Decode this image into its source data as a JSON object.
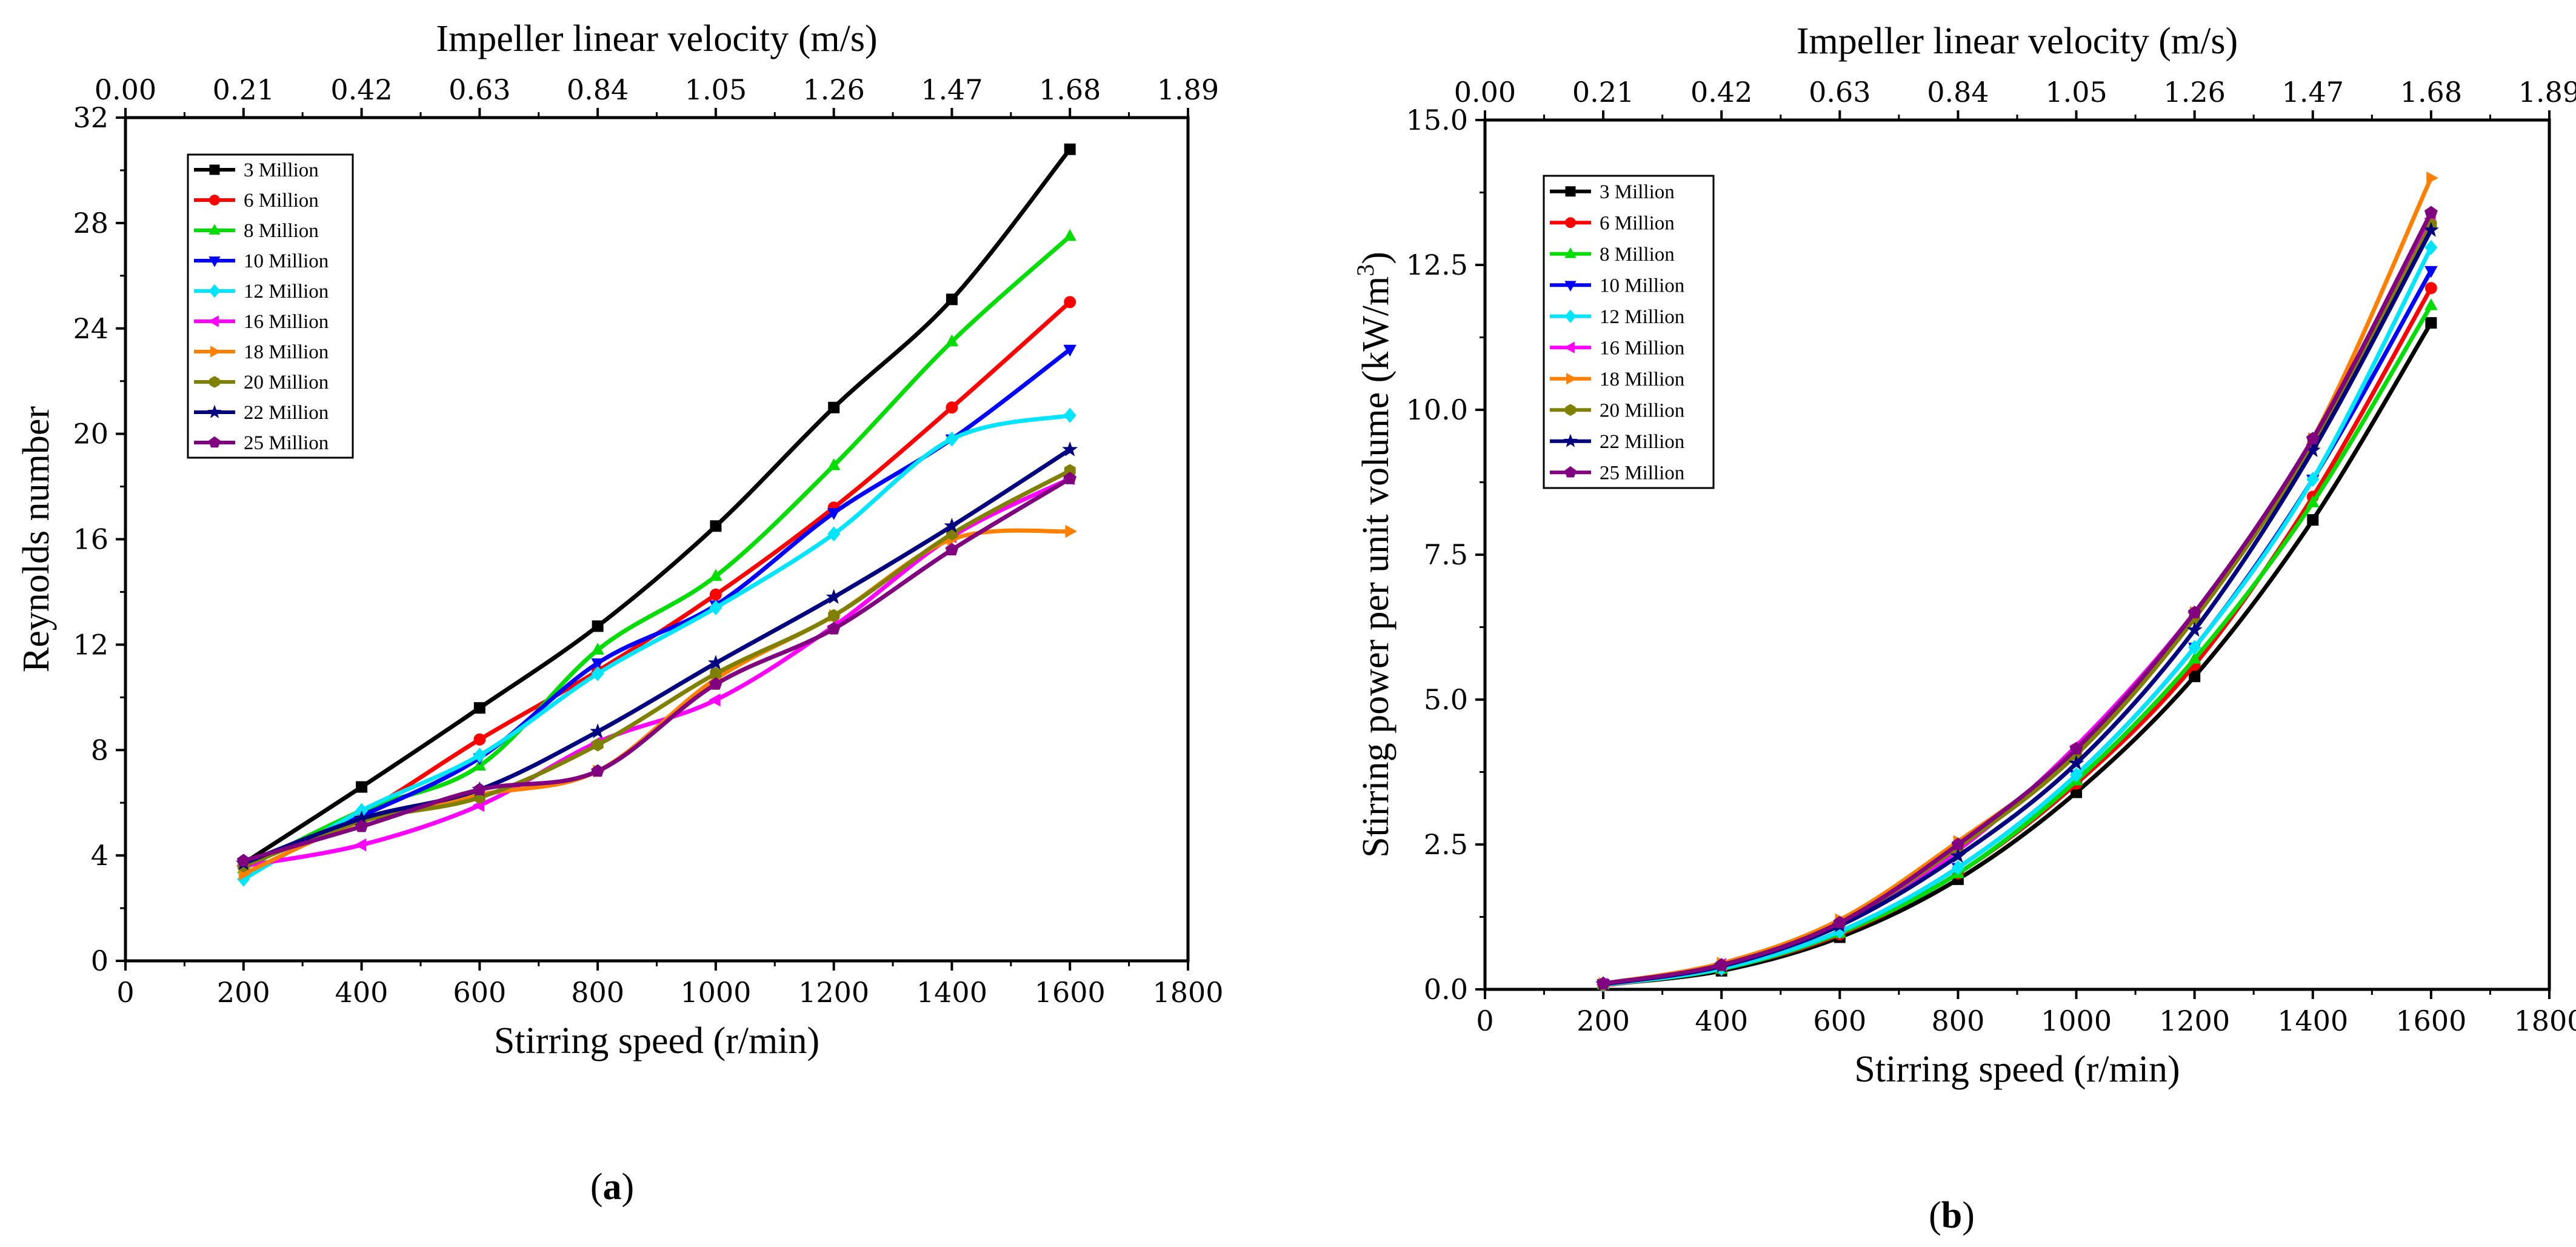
{
  "chart_data": [
    {
      "type": "line",
      "panel_label": "a",
      "title": "",
      "xlabel": "Stirring speed (r/min)",
      "ylabel": "Reynolds number",
      "x2label": "Impeller linear velocity  (m/s)",
      "xlim": [
        0,
        1800
      ],
      "ylim": [
        0,
        32
      ],
      "x2lim": [
        0,
        1.89
      ],
      "xticks": [
        "0",
        "200",
        "400",
        "600",
        "800",
        "1000",
        "1200",
        "1400",
        "1600",
        "1800"
      ],
      "yticks": [
        "0",
        "4",
        "8",
        "12",
        "16",
        "20",
        "24",
        "28",
        "32"
      ],
      "x2ticks": [
        "0.00",
        "0.21",
        "0.42",
        "0.63",
        "0.84",
        "1.05",
        "1.26",
        "1.47",
        "1.68",
        "1.89"
      ],
      "x": [
        200,
        400,
        600,
        800,
        1000,
        1200,
        1400,
        1600
      ],
      "legend_position": "top-left",
      "series": [
        {
          "name": "3 Million",
          "color": "#000000",
          "marker": "square",
          "values": [
            3.7,
            6.6,
            9.6,
            12.7,
            16.5,
            21.0,
            25.1,
            30.8
          ]
        },
        {
          "name": "6 Million",
          "color": "#ff0000",
          "marker": "circle",
          "values": [
            3.6,
            5.6,
            8.4,
            11.0,
            13.9,
            17.2,
            21.0,
            25.0
          ]
        },
        {
          "name": "8 Million",
          "color": "#00dd00",
          "marker": "triangle-up",
          "values": [
            3.5,
            5.7,
            7.4,
            11.8,
            14.6,
            18.8,
            23.5,
            27.5
          ]
        },
        {
          "name": "10 Million",
          "color": "#0000ff",
          "marker": "triangle-down",
          "values": [
            3.6,
            5.5,
            7.7,
            11.3,
            13.5,
            17.0,
            19.8,
            23.2
          ]
        },
        {
          "name": "12 Million",
          "color": "#00e5ff",
          "marker": "diamond",
          "values": [
            3.1,
            5.7,
            7.8,
            10.9,
            13.4,
            16.2,
            19.8,
            20.7
          ]
        },
        {
          "name": "16 Million",
          "color": "#ff00ff",
          "marker": "triangle-left",
          "values": [
            3.6,
            4.4,
            5.9,
            8.3,
            9.9,
            12.7,
            16.1,
            18.3
          ]
        },
        {
          "name": "18 Million",
          "color": "#ff8000",
          "marker": "triangle-right",
          "values": [
            3.3,
            5.3,
            6.3,
            7.2,
            10.7,
            13.1,
            16.0,
            16.3
          ]
        },
        {
          "name": "20 Million",
          "color": "#808000",
          "marker": "hexagon",
          "values": [
            3.6,
            5.3,
            6.2,
            8.2,
            10.9,
            13.1,
            16.2,
            18.6
          ]
        },
        {
          "name": "22 Million",
          "color": "#000080",
          "marker": "star",
          "values": [
            3.7,
            5.4,
            6.5,
            8.7,
            11.3,
            13.8,
            16.5,
            19.4
          ]
        },
        {
          "name": "25 Million",
          "color": "#800080",
          "marker": "pentagon",
          "values": [
            3.8,
            5.1,
            6.5,
            7.2,
            10.5,
            12.6,
            15.6,
            18.3
          ]
        }
      ]
    },
    {
      "type": "line",
      "panel_label": "b",
      "title": "",
      "xlabel": "Stirring speed (r/min)",
      "ylabel": "Stirring power per unit volume (kW/m³)",
      "ylabel_main": "Stirring power per unit volume (kW/m",
      "ylabel_sup": "3",
      "ylabel_tail": ")",
      "x2label": "Impeller linear velocity (m/s)",
      "xlim": [
        0,
        1800
      ],
      "ylim": [
        0,
        15
      ],
      "x2lim": [
        0,
        1.89
      ],
      "xticks": [
        "0",
        "200",
        "400",
        "600",
        "800",
        "1000",
        "1200",
        "1400",
        "1600",
        "1800"
      ],
      "yticks": [
        "0.0",
        "2.5",
        "5.0",
        "7.5",
        "10.0",
        "12.5",
        "15.0"
      ],
      "x2ticks": [
        "0.00",
        "0.21",
        "0.42",
        "0.63",
        "0.84",
        "1.05",
        "1.26",
        "1.47",
        "1.68",
        "1.89"
      ],
      "x": [
        200,
        400,
        600,
        800,
        1000,
        1200,
        1400,
        1600
      ],
      "legend_position": "top-left",
      "series": [
        {
          "name": "3 Million",
          "color": "#000000",
          "marker": "square",
          "values": [
            0.08,
            0.32,
            0.9,
            1.9,
            3.4,
            5.4,
            8.1,
            11.5
          ]
        },
        {
          "name": "6 Million",
          "color": "#ff0000",
          "marker": "circle",
          "values": [
            0.07,
            0.35,
            0.95,
            2.0,
            3.55,
            5.6,
            8.5,
            12.1
          ]
        },
        {
          "name": "8 Million",
          "color": "#00dd00",
          "marker": "triangle-up",
          "values": [
            0.08,
            0.35,
            0.97,
            2.0,
            3.6,
            5.7,
            8.4,
            11.8
          ]
        },
        {
          "name": "10 Million",
          "color": "#0000ff",
          "marker": "triangle-down",
          "values": [
            0.09,
            0.37,
            1.0,
            2.1,
            3.7,
            5.9,
            8.8,
            12.4
          ]
        },
        {
          "name": "12 Million",
          "color": "#00e5ff",
          "marker": "diamond",
          "values": [
            0.08,
            0.36,
            1.0,
            2.1,
            3.7,
            5.9,
            8.8,
            12.8
          ]
        },
        {
          "name": "16 Million",
          "color": "#ff00ff",
          "marker": "triangle-left",
          "values": [
            0.09,
            0.43,
            1.15,
            2.4,
            4.2,
            6.5,
            9.4,
            13.3
          ]
        },
        {
          "name": "18 Million",
          "color": "#ff8000",
          "marker": "triangle-right",
          "values": [
            0.1,
            0.45,
            1.2,
            2.55,
            4.1,
            6.5,
            9.5,
            14.0
          ]
        },
        {
          "name": "20 Million",
          "color": "#808000",
          "marker": "hexagon",
          "values": [
            0.09,
            0.42,
            1.15,
            2.45,
            4.05,
            6.4,
            9.4,
            13.2
          ]
        },
        {
          "name": "22 Million",
          "color": "#000080",
          "marker": "star",
          "values": [
            0.09,
            0.4,
            1.1,
            2.3,
            3.9,
            6.2,
            9.3,
            13.1
          ]
        },
        {
          "name": "25 Million",
          "color": "#800080",
          "marker": "pentagon",
          "values": [
            0.1,
            0.42,
            1.15,
            2.5,
            4.15,
            6.5,
            9.5,
            13.4
          ]
        }
      ]
    }
  ]
}
